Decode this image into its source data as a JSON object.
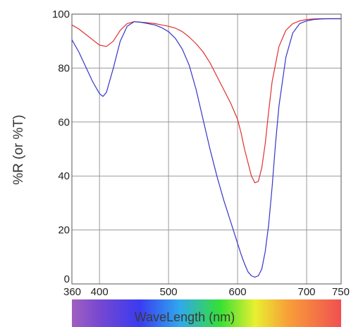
{
  "chart_data": {
    "type": "line",
    "ylabel": "%R (or %T)",
    "xlabel": "WaveLength (nm)",
    "xlim": [
      360,
      750
    ],
    "ylim": [
      0,
      100
    ],
    "x_ticks": [
      360,
      400,
      500,
      600,
      700,
      750
    ],
    "x_tick_labels": [
      "360",
      "400",
      "500",
      "600",
      "700",
      "750"
    ],
    "y_ticks": [
      0,
      20,
      40,
      60,
      80,
      100
    ],
    "y_tick_labels": [
      "0",
      "20",
      "40",
      "60",
      "80",
      "100"
    ],
    "grid": true,
    "colorbar": "visible-spectrum gradient behind x-axis label",
    "series": [
      {
        "color": "#e03030",
        "x": [
          360,
          370,
          380,
          390,
          400,
          410,
          420,
          430,
          440,
          450,
          460,
          470,
          480,
          490,
          500,
          510,
          520,
          530,
          540,
          550,
          560,
          570,
          580,
          590,
          600,
          605,
          610,
          615,
          620,
          625,
          630,
          635,
          640,
          645,
          650,
          660,
          670,
          680,
          690,
          700,
          710,
          720,
          730,
          740,
          750
        ],
        "y": [
          96,
          94.5,
          92.5,
          90.5,
          88.5,
          88,
          90,
          94,
          96.5,
          97.2,
          97,
          96.8,
          96.5,
          96,
          95.5,
          94.8,
          93.5,
          91.5,
          89,
          86,
          82,
          77,
          72,
          67,
          61,
          56,
          50,
          45,
          40,
          37.5,
          38,
          43,
          52,
          64,
          75,
          88,
          94,
          96.5,
          97.5,
          98,
          98.2,
          98.3,
          98.3,
          98.3,
          98.3
        ]
      },
      {
        "color": "#3535c8",
        "x": [
          360,
          370,
          380,
          390,
          400,
          405,
          410,
          420,
          430,
          440,
          450,
          460,
          470,
          480,
          490,
          500,
          510,
          520,
          530,
          540,
          550,
          560,
          570,
          580,
          590,
          600,
          605,
          610,
          615,
          620,
          625,
          630,
          635,
          640,
          645,
          650,
          655,
          660,
          670,
          680,
          690,
          700,
          710,
          720,
          730,
          740,
          750
        ],
        "y": [
          90.5,
          86,
          80.5,
          75,
          70.5,
          69.5,
          71,
          80,
          90,
          95.5,
          97.2,
          97,
          96.5,
          96,
          95,
          93.5,
          91,
          87,
          81,
          72,
          61,
          50,
          40,
          31,
          23,
          15,
          11,
          7.5,
          4.5,
          3,
          2.5,
          3,
          5.5,
          12,
          22,
          36,
          52,
          66,
          84,
          93,
          96.5,
          97.5,
          98,
          98.2,
          98.3,
          98.3,
          98.3
        ]
      }
    ]
  }
}
